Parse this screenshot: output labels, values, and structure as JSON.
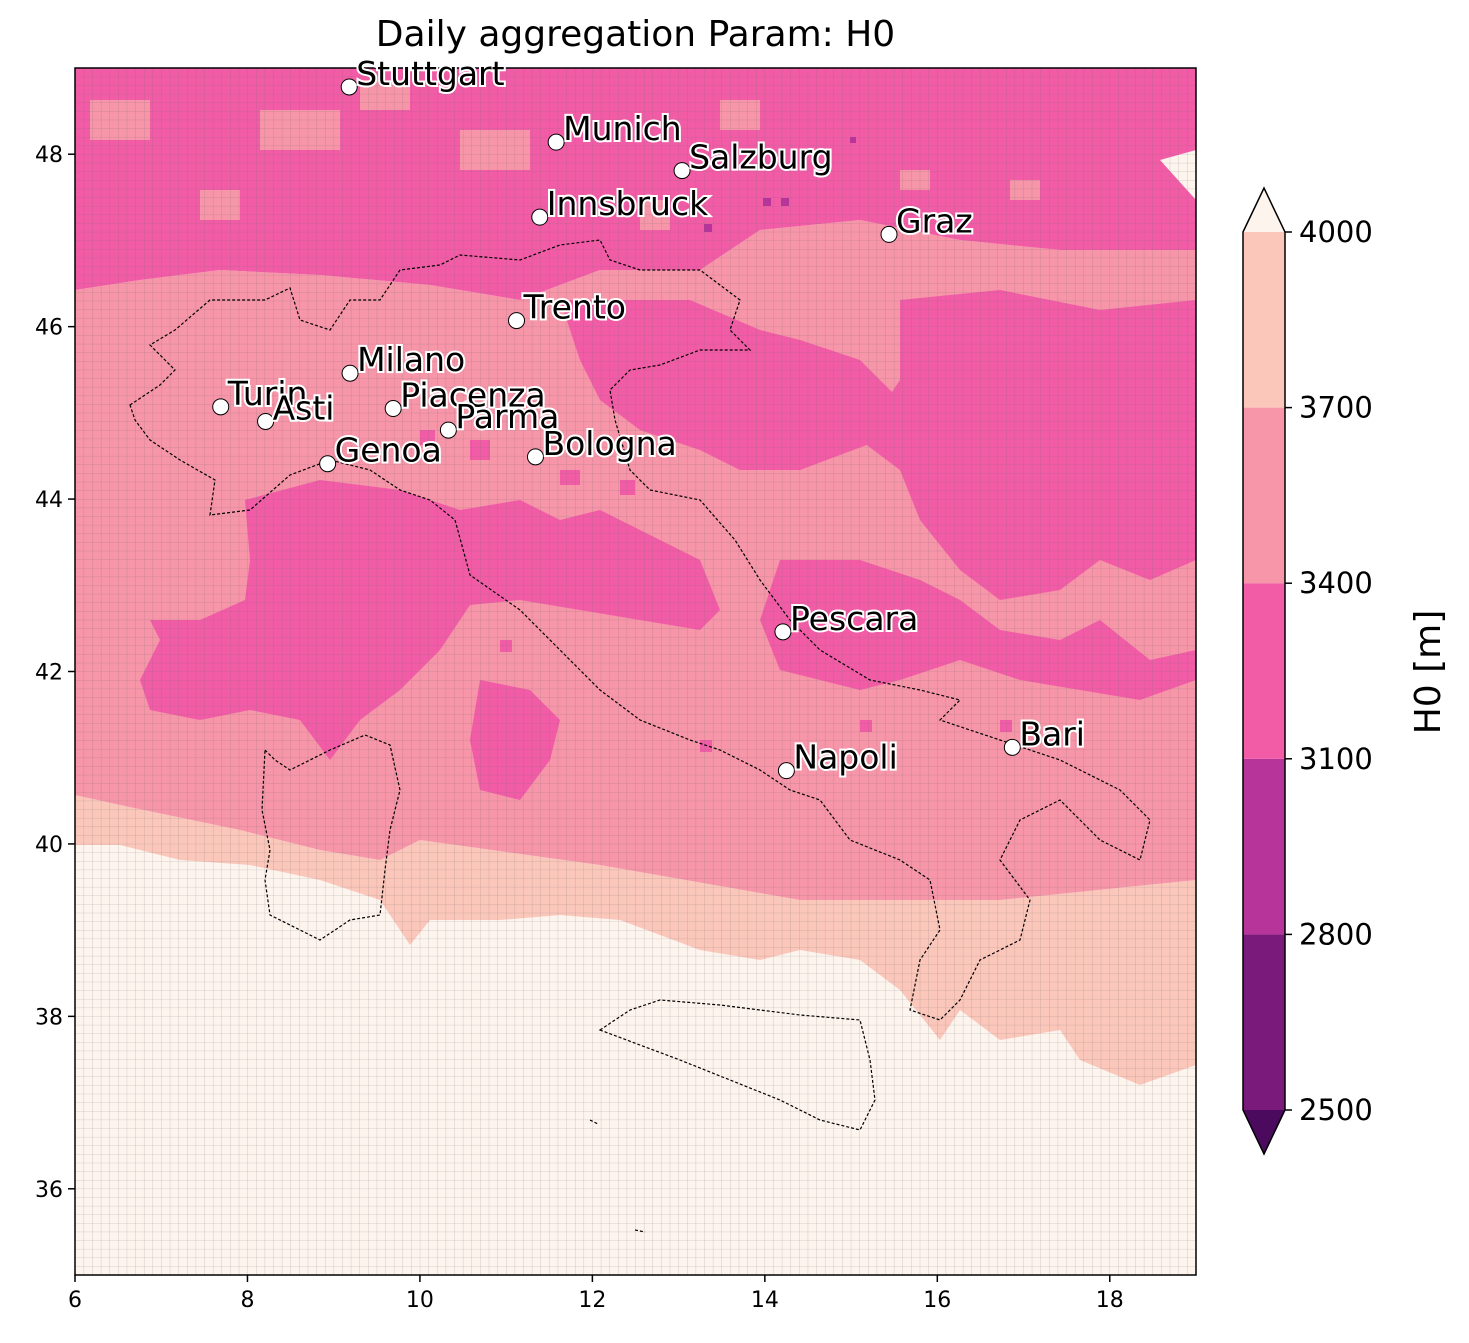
{
  "title": "Daily aggregation Param: H0",
  "map": {
    "lon_range": [
      6,
      19
    ],
    "lat_range": [
      35,
      49
    ],
    "x_ticks": [
      "6",
      "8",
      "10",
      "12",
      "14",
      "16",
      "18"
    ],
    "y_ticks": [
      "36",
      "38",
      "40",
      "42",
      "44",
      "46",
      "48"
    ],
    "grid_lines": true
  },
  "colorbar": {
    "label": "H0  [m]",
    "ticks": [
      "2500",
      "2800",
      "3100",
      "3400",
      "3700",
      "4000"
    ],
    "colors": [
      "#7a1a7b",
      "#b7349a",
      "#f25ca7",
      "#f795a9",
      "#fcc7bb"
    ],
    "under_color": "#4c0a5e",
    "over_color": "#fdf4ee",
    "extend": "both"
  },
  "chart_data": {
    "type": "heatmap",
    "title": "Daily aggregation Param: H0",
    "xlim": [
      6,
      19
    ],
    "ylim": [
      35,
      49
    ],
    "value_units": "m",
    "levels": [
      2500,
      2800,
      3100,
      3400,
      3700,
      4000
    ]
  },
  "cities": [
    {
      "name": "Stuttgart",
      "lon": 9.18,
      "lat": 48.78
    },
    {
      "name": "Munich",
      "lon": 11.58,
      "lat": 48.14
    },
    {
      "name": "Salzburg",
      "lon": 13.04,
      "lat": 47.81
    },
    {
      "name": "Innsbruck",
      "lon": 11.39,
      "lat": 47.27
    },
    {
      "name": "Graz",
      "lon": 15.44,
      "lat": 47.07
    },
    {
      "name": "Trento",
      "lon": 11.12,
      "lat": 46.07
    },
    {
      "name": "Milano",
      "lon": 9.19,
      "lat": 45.46
    },
    {
      "name": "Turin",
      "lon": 7.69,
      "lat": 45.07
    },
    {
      "name": "Asti",
      "lon": 8.21,
      "lat": 44.9
    },
    {
      "name": "Piacenza",
      "lon": 9.69,
      "lat": 45.05
    },
    {
      "name": "Parma",
      "lon": 10.33,
      "lat": 44.8
    },
    {
      "name": "Genoa",
      "lon": 8.93,
      "lat": 44.41
    },
    {
      "name": "Bologna",
      "lon": 11.34,
      "lat": 44.49
    },
    {
      "name": "Pescara",
      "lon": 14.21,
      "lat": 42.46
    },
    {
      "name": "Napoli",
      "lon": 14.25,
      "lat": 40.85
    },
    {
      "name": "Bari",
      "lon": 16.87,
      "lat": 41.12
    }
  ]
}
